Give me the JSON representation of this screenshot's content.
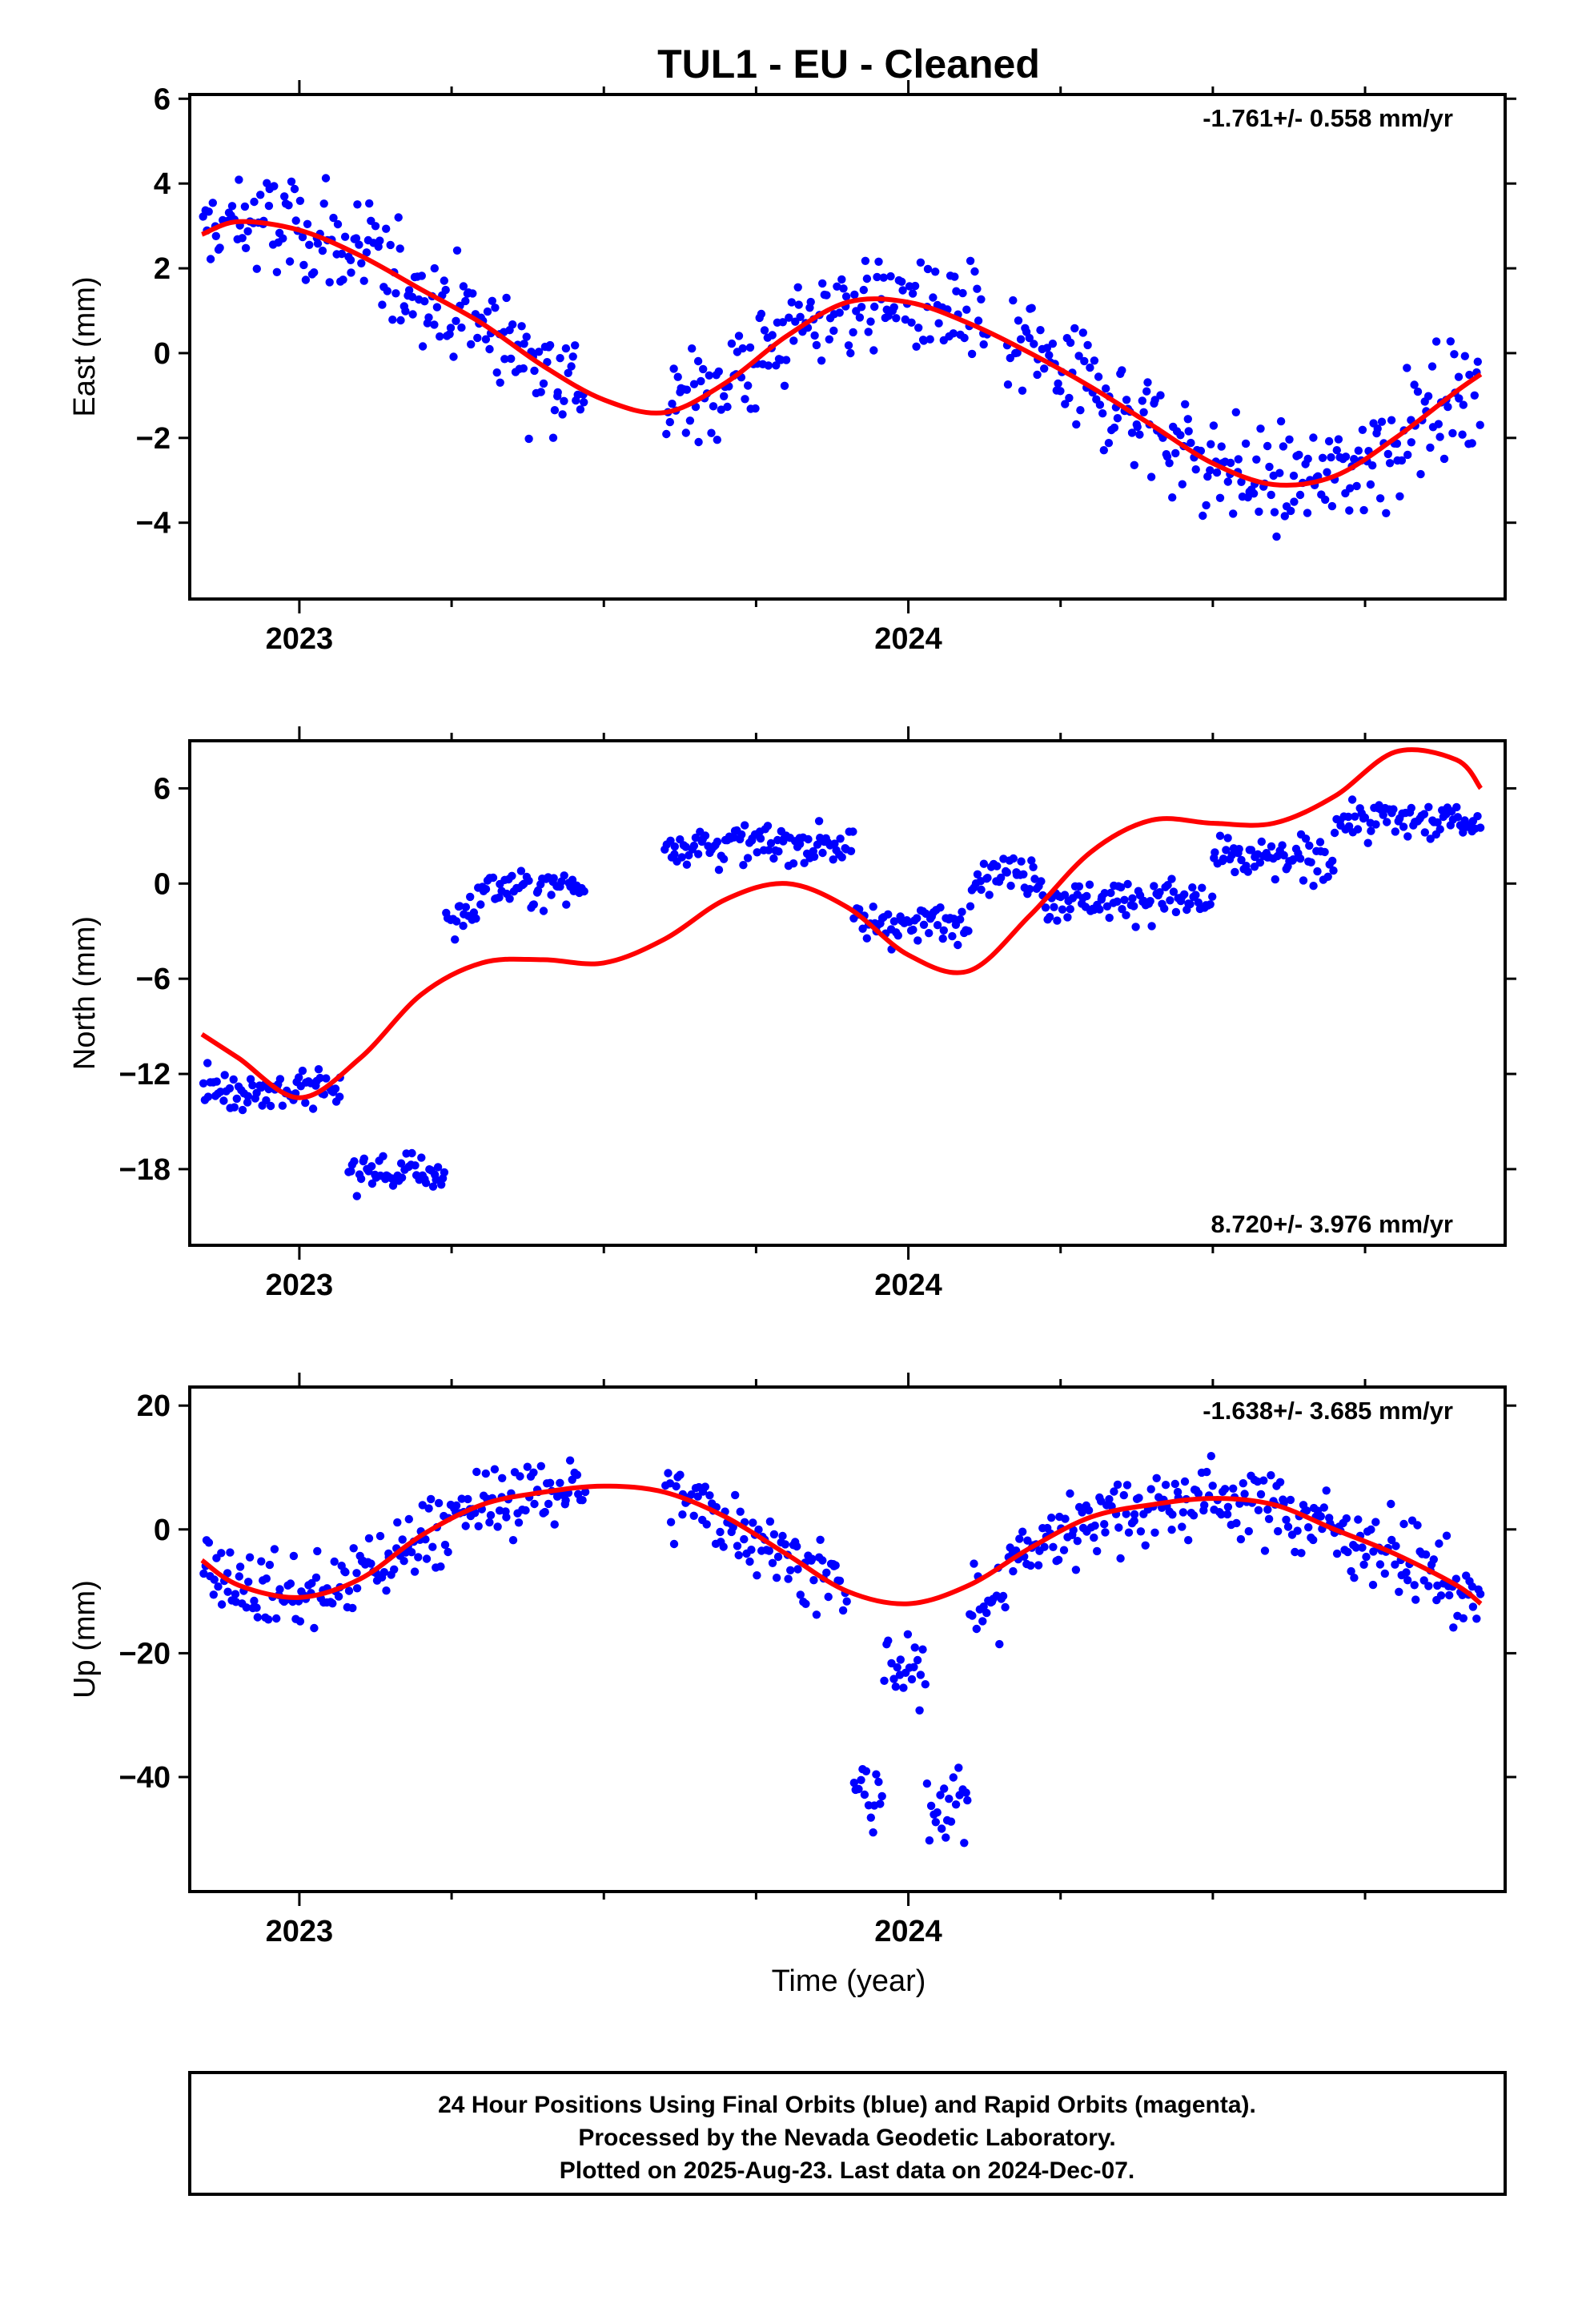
{
  "chart_data": {
    "title": "TUL1  - EU - Cleaned",
    "xlabel": "Time (year)",
    "x_range": [
      2022.82,
      2024.98
    ],
    "x_tick_labels": [
      "2023",
      "2024"
    ],
    "footer": [
      "24 Hour Positions Using Final Orbits (blue) and Rapid Orbits (magenta).",
      "Processed by the Nevada Geodetic Laboratory.",
      "Plotted on 2025-Aug-23. Last data on 2024-Dec-07."
    ],
    "panels": [
      {
        "id": "east",
        "type": "scatter",
        "ylabel": "East (mm)",
        "ylim": [
          -5.8,
          6.1
        ],
        "y_ticks": [
          -4,
          -2,
          0,
          2,
          4,
          6
        ],
        "y_tick_labels": [
          "−4",
          "−2",
          "0",
          "2",
          "4",
          "6"
        ],
        "rate_text": "-1.761+/- 0.558 mm/yr",
        "rate_position": "top-right",
        "point_color": "#0000ff",
        "fit_color": "#ff0000",
        "data_segments": [
          [
            2022.84,
            2023.47
          ],
          [
            2023.6,
            2024.13
          ],
          [
            2024.16,
            2024.94
          ]
        ],
        "fit_curve": {
          "x": [
            2022.84,
            2022.9,
            2023.0,
            2023.1,
            2023.2,
            2023.3,
            2023.4,
            2023.5,
            2023.6,
            2023.7,
            2023.8,
            2023.9,
            2024.0,
            2024.1,
            2024.2,
            2024.3,
            2024.4,
            2024.5,
            2024.6,
            2024.7,
            2024.8,
            2024.9,
            2024.94
          ],
          "y": [
            2.8,
            3.1,
            2.9,
            2.3,
            1.5,
            0.7,
            -0.3,
            -1.1,
            -1.4,
            -0.7,
            0.4,
            1.2,
            1.2,
            0.7,
            0.0,
            -0.8,
            -1.7,
            -2.6,
            -3.1,
            -2.9,
            -2.0,
            -0.9,
            -0.5
          ]
        }
      },
      {
        "id": "north",
        "type": "scatter",
        "ylabel": "North (mm)",
        "ylim": [
          -22.8,
          9.0
        ],
        "y_ticks": [
          -18,
          -12,
          -6,
          0,
          6
        ],
        "y_tick_labels": [
          "−18",
          "−12",
          "−6",
          "0",
          "6"
        ],
        "rate_text": "8.720+/- 3.976 mm/yr",
        "rate_position": "bottom-right",
        "point_color": "#0000ff",
        "fit_color": "#ff0000",
        "data_segments": [
          [
            2022.84,
            2023.07
          ],
          [
            2023.08,
            2023.24
          ],
          [
            2023.24,
            2023.47
          ],
          [
            2023.6,
            2023.91
          ],
          [
            2023.91,
            2024.1
          ],
          [
            2024.1,
            2024.22
          ],
          [
            2024.22,
            2024.5
          ],
          [
            2024.5,
            2024.7
          ],
          [
            2024.7,
            2024.94
          ]
        ],
        "fit_curve": {
          "x": [
            2022.84,
            2022.9,
            2023.0,
            2023.1,
            2023.2,
            2023.3,
            2023.4,
            2023.5,
            2023.6,
            2023.7,
            2023.8,
            2023.9,
            2024.0,
            2024.1,
            2024.2,
            2024.3,
            2024.4,
            2024.5,
            2024.6,
            2024.7,
            2024.8,
            2024.9,
            2024.94
          ],
          "y": [
            -9.5,
            -11.0,
            -13.5,
            -11.0,
            -7.0,
            -5.0,
            -4.8,
            -5.0,
            -3.5,
            -1.0,
            0.0,
            -1.5,
            -4.5,
            -5.5,
            -2.0,
            2.0,
            4.0,
            3.8,
            3.8,
            5.5,
            8.3,
            7.8,
            6.0
          ]
        }
      },
      {
        "id": "up",
        "type": "scatter",
        "ylabel": "Up (mm)",
        "ylim": [
          -58.5,
          23.0
        ],
        "y_ticks": [
          -40,
          -20,
          0,
          20
        ],
        "y_tick_labels": [
          "−40",
          "−20",
          "0",
          "20"
        ],
        "rate_text": "-1.638+/- 3.685 mm/yr",
        "rate_position": "top-right",
        "point_color": "#0000ff",
        "fit_color": "#ff0000",
        "data_segments": [
          [
            2022.84,
            2023.47
          ],
          [
            2023.6,
            2023.9
          ],
          [
            2023.91,
            2023.96
          ],
          [
            2023.96,
            2024.03
          ],
          [
            2024.03,
            2024.1
          ],
          [
            2024.1,
            2024.94
          ]
        ],
        "fit_curve": {
          "x": [
            2022.84,
            2022.9,
            2023.0,
            2023.1,
            2023.2,
            2023.3,
            2023.4,
            2023.5,
            2023.6,
            2023.7,
            2023.8,
            2023.9,
            2024.0,
            2024.1,
            2024.2,
            2024.3,
            2024.4,
            2024.5,
            2024.6,
            2024.7,
            2024.8,
            2024.9,
            2024.94
          ],
          "y": [
            -5,
            -9,
            -11,
            -8,
            -1,
            4,
            6,
            7,
            6,
            2,
            -4,
            -10,
            -12,
            -9,
            -3,
            2,
            4,
            5,
            4,
            0,
            -4,
            -9,
            -12
          ]
        }
      }
    ]
  }
}
